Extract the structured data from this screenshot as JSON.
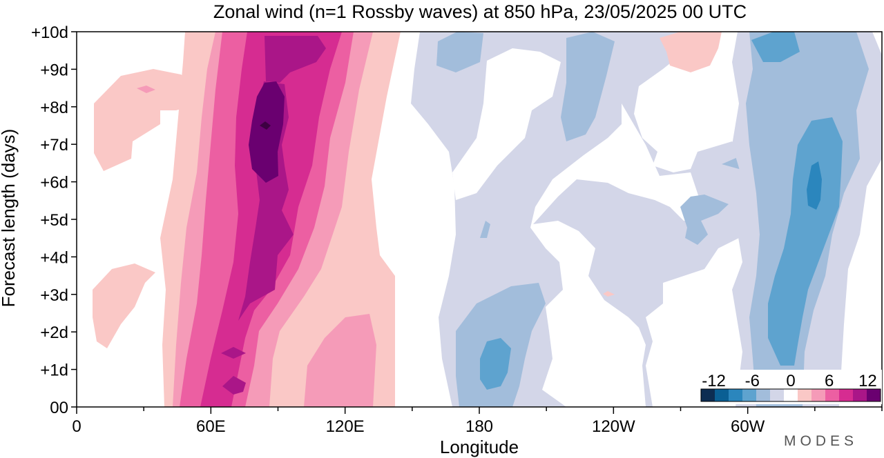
{
  "chart_data": {
    "type": "heatmap",
    "title": "Zonal wind (n=1 Rossby waves) at 850 hPa,  23/05/2025  00 UTC",
    "xlabel": "Longitude",
    "ylabel": "Forecast length (days)",
    "x_ticks": [
      "0",
      "60E",
      "120E",
      "180",
      "120W",
      "60W"
    ],
    "y_ticks": [
      "00",
      "+1d",
      "+2d",
      "+3d",
      "+4d",
      "+5d",
      "+6d",
      "+7d",
      "+8d",
      "+9d",
      "+10d"
    ],
    "xlim": [
      0,
      360
    ],
    "ylim": [
      0,
      10
    ],
    "colorbar": {
      "labels": [
        "-12",
        "-6",
        "0",
        "6",
        "12"
      ],
      "levels": [
        -14,
        -12,
        -10,
        -8,
        -6,
        -4,
        -2,
        2,
        4,
        6,
        8,
        10,
        12,
        14
      ],
      "colors": [
        "#0d2d52",
        "#0a5f94",
        "#2b86bd",
        "#5ea3cf",
        "#a2bddb",
        "#d3d6e8",
        "#ffffff",
        "#fac8c6",
        "#f59bb8",
        "#ec5fa2",
        "#d62c91",
        "#aa1688",
        "#6a0070"
      ]
    },
    "features": [
      {
        "name": "positive band east of Africa / Indian Ocean",
        "lon_range": [
          40,
          145
        ],
        "max_value": 13,
        "peak": {
          "lon": 85,
          "day": 7.5
        }
      },
      {
        "name": "negative band near dateline",
        "lon_range": [
          165,
          215
        ],
        "min_value": -8,
        "peak": {
          "lon": 187,
          "day": 1
        }
      },
      {
        "name": "negative band over Americas",
        "lon_range": [
          290,
          350
        ],
        "min_value": -12,
        "peak": {
          "lon": 330,
          "day": 5.5
        }
      }
    ]
  },
  "branding": {
    "logo_text": "MODES"
  }
}
